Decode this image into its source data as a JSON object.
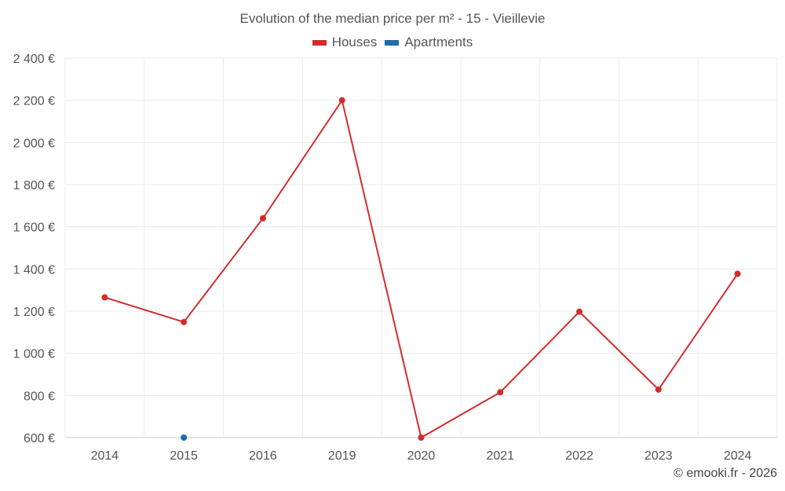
{
  "chart_data": {
    "type": "line",
    "title": "Evolution of the median price per m² - 15 - Vieillevie",
    "categories": [
      "2014",
      "2015",
      "2016",
      "2019",
      "2020",
      "2021",
      "2022",
      "2023",
      "2024"
    ],
    "yticks": [
      "600 €",
      "800 €",
      "1 000 €",
      "1 200 €",
      "1 400 €",
      "1 600 €",
      "1 800 €",
      "2 000 €",
      "2 200 €",
      "2 400 €"
    ],
    "ylim": [
      600,
      2400
    ],
    "grid": true,
    "legend_position": "top-center",
    "series": [
      {
        "name": "Houses",
        "color": "#d22c2c",
        "values": [
          1265,
          1148,
          1640,
          2200,
          600,
          815,
          1197,
          828,
          1377
        ]
      },
      {
        "name": "Apartments",
        "color": "#1f6bab",
        "values": [
          null,
          600,
          null,
          null,
          null,
          null,
          null,
          null,
          null
        ]
      }
    ]
  },
  "credit": "© emooki.fr - 2026"
}
